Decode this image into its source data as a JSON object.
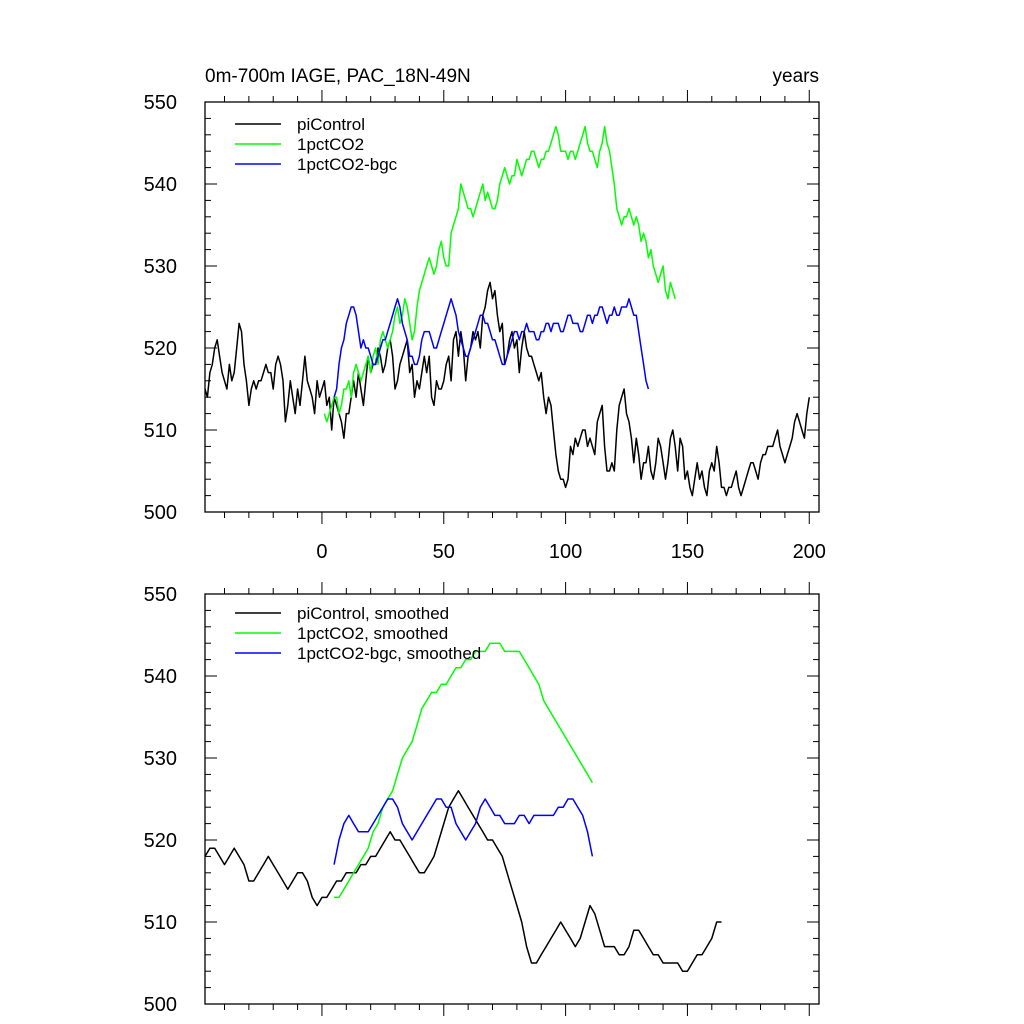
{
  "chart_data": [
    {
      "type": "line",
      "title_left": "0m-700m IAGE, PAC_18N-49N",
      "title_right": "years",
      "xlim": [
        -48,
        204
      ],
      "ylim": [
        500,
        550
      ],
      "x_ticks": [
        0,
        50,
        100,
        150,
        200
      ],
      "x_tick_labels": [
        "0",
        "50",
        "100",
        "150",
        "200"
      ],
      "y_ticks": [
        500,
        510,
        520,
        530,
        540,
        550
      ],
      "y_tick_labels": [
        "500",
        "510",
        "520",
        "530",
        "540",
        "550"
      ],
      "colors": {
        "piControl": "#000000",
        "1pctCO2": "#00ff00",
        "1pctCO2-bgc": "#0000ff"
      },
      "legend": [
        "piControl",
        "1pctCO2",
        "1pctCO2-bgc"
      ],
      "series": [
        {
          "name": "piControl",
          "color": "#000000",
          "x_start": -48,
          "x_step": 1,
          "values": [
            515,
            514,
            517,
            518,
            520,
            521,
            519,
            517,
            516,
            515,
            518,
            516,
            517,
            520,
            523,
            522,
            518,
            516,
            513,
            515,
            516,
            515,
            516,
            516,
            517,
            518,
            517,
            517,
            515,
            518,
            519,
            518,
            516,
            511,
            513,
            516,
            514,
            512,
            515,
            513,
            516,
            519,
            516,
            515,
            514,
            512,
            516,
            514,
            515,
            516,
            513,
            514,
            510,
            514,
            513,
            512,
            511,
            509,
            512,
            512,
            514,
            516,
            514,
            517,
            515,
            513,
            516,
            519,
            517,
            518,
            518,
            520,
            519,
            517,
            518,
            520,
            521,
            519,
            515,
            516,
            518,
            519,
            520,
            521,
            517,
            518,
            514,
            516,
            515,
            517,
            519,
            517,
            519,
            514,
            513,
            516,
            515,
            515,
            516,
            518,
            519,
            516,
            521,
            522,
            519,
            522,
            520,
            516,
            519,
            520,
            522,
            521,
            522,
            520,
            524,
            525,
            527,
            528,
            526,
            527,
            524,
            522,
            523,
            518,
            519,
            521,
            522,
            520,
            521,
            517,
            520,
            522,
            520,
            519,
            519,
            518,
            517,
            516,
            517,
            514,
            512,
            514,
            513,
            510,
            507,
            505,
            504,
            504,
            503,
            504,
            508,
            507,
            509,
            508,
            509,
            510,
            510,
            508,
            509,
            508,
            507,
            511,
            512,
            513,
            508,
            505,
            505,
            506,
            505,
            510,
            513,
            514,
            515,
            512,
            511,
            509,
            506,
            509,
            507,
            504,
            506,
            506,
            508,
            505,
            504,
            506,
            509,
            508,
            506,
            504,
            506,
            509,
            510,
            508,
            505,
            509,
            508,
            504,
            505,
            503,
            502,
            504,
            506,
            504,
            505,
            503,
            502,
            505,
            506,
            505,
            508,
            506,
            503,
            503,
            502,
            503,
            503,
            504,
            505,
            503,
            502,
            503,
            504,
            505,
            506,
            506,
            505,
            504,
            506,
            507,
            507,
            508,
            508,
            508,
            509,
            510,
            508,
            507,
            506,
            507,
            508,
            509,
            511,
            512,
            511,
            510,
            509,
            512,
            514
          ]
        },
        {
          "name": "1pctCO2",
          "color": "#00ff00",
          "x_start": 1,
          "x_step": 1,
          "values": [
            512,
            511,
            512,
            513,
            514,
            514,
            512,
            513,
            515,
            515,
            516,
            514,
            517,
            518,
            517,
            516,
            517,
            518,
            519,
            517,
            519,
            520,
            518,
            521,
            522,
            521,
            520,
            521,
            522,
            524,
            525,
            523,
            524,
            526,
            525,
            523,
            521,
            522,
            525,
            527,
            528,
            529,
            530,
            531,
            530,
            529,
            530,
            532,
            533,
            531,
            530,
            530,
            534,
            535,
            536,
            537,
            540,
            539,
            538,
            537,
            537,
            536,
            537,
            538,
            539,
            540,
            538,
            539,
            538,
            537,
            537,
            538,
            540,
            541,
            542,
            541,
            540,
            541,
            541,
            543,
            542,
            541,
            542,
            543,
            543,
            544,
            544,
            543,
            542,
            543,
            543,
            544,
            544,
            545,
            546,
            547,
            546,
            544,
            544,
            544,
            543,
            544,
            544,
            543,
            544,
            545,
            546,
            547,
            545,
            544,
            544,
            543,
            542,
            544,
            545,
            547,
            545,
            544,
            542,
            540,
            537,
            536,
            535,
            536,
            536,
            537,
            536,
            535,
            536,
            535,
            533,
            534,
            533,
            531,
            532,
            530,
            529,
            528,
            529,
            530,
            527,
            526,
            528,
            527,
            526
          ]
        },
        {
          "name": "1pctCO2-bgc",
          "color": "#0000ff",
          "x_start": 5,
          "x_step": 1,
          "values": [
            514,
            515,
            518,
            520,
            521,
            523,
            524,
            525,
            525,
            524,
            522,
            520,
            521,
            520,
            520,
            519,
            518,
            518,
            519,
            520,
            521,
            521,
            522,
            523,
            524,
            525,
            526,
            525,
            523,
            522,
            521,
            519,
            519,
            518,
            518,
            519,
            521,
            522,
            522,
            522,
            521,
            520,
            520,
            521,
            522,
            523,
            524,
            525,
            526,
            525,
            524,
            522,
            521,
            520,
            519,
            519,
            520,
            521,
            522,
            523,
            524,
            524,
            523,
            523,
            522,
            521,
            521,
            520,
            519,
            518,
            518,
            519,
            520,
            521,
            522,
            522,
            521,
            522,
            522,
            523,
            522,
            522,
            522,
            521,
            521,
            522,
            522,
            523,
            523,
            522,
            523,
            523,
            523,
            522,
            522,
            523,
            524,
            524,
            523,
            523,
            523,
            522,
            522,
            523,
            524,
            524,
            523,
            524,
            524,
            525,
            525,
            524,
            523,
            524,
            524,
            525,
            524,
            524,
            525,
            525,
            525,
            526,
            525,
            524,
            524,
            522,
            520,
            518,
            516,
            515
          ]
        }
      ]
    },
    {
      "type": "line",
      "xlim": [
        -48,
        204
      ],
      "ylim": [
        500,
        550
      ],
      "y_ticks": [
        500,
        510,
        520,
        530,
        540,
        550
      ],
      "y_tick_labels": [
        "500",
        "510",
        "520",
        "530",
        "540",
        "550"
      ],
      "legend": [
        "piControl, smoothed",
        "1pctCO2, smoothed",
        "1pctCO2-bgc, smoothed"
      ],
      "series": [
        {
          "name": "piControl, smoothed",
          "color": "#000000",
          "x_start": -48,
          "x_step": 2,
          "values": [
            518,
            519,
            519,
            518,
            517,
            518,
            519,
            518,
            517,
            515,
            515,
            516,
            517,
            518,
            517,
            516,
            515,
            514,
            515,
            516,
            516,
            515,
            513,
            512,
            513,
            513,
            514,
            515,
            515,
            516,
            516,
            516,
            517,
            517,
            518,
            518,
            519,
            520,
            521,
            520,
            520,
            519,
            518,
            517,
            516,
            516,
            517,
            518,
            520,
            522,
            524,
            525,
            526,
            525,
            524,
            523,
            522,
            521,
            520,
            520,
            519,
            518,
            516,
            514,
            512,
            510,
            507,
            505,
            505,
            506,
            507,
            508,
            509,
            510,
            509,
            508,
            507,
            508,
            510,
            512,
            511,
            509,
            507,
            507,
            507,
            506,
            506,
            507,
            509,
            509,
            508,
            507,
            506,
            506,
            505,
            505,
            505,
            505,
            504,
            504,
            505,
            506,
            506,
            507,
            508,
            510,
            510
          ]
        },
        {
          "name": "1pctCO2, smoothed",
          "color": "#00ff00",
          "x_start": 5,
          "x_step": 2,
          "values": [
            513,
            513,
            514,
            515,
            516,
            517,
            518,
            519,
            521,
            522,
            524,
            525,
            526,
            528,
            530,
            531,
            532,
            534,
            536,
            537,
            538,
            538,
            539,
            539,
            540,
            541,
            541,
            542,
            542,
            543,
            543,
            543,
            544,
            544,
            544,
            543,
            543,
            543,
            543,
            542,
            541,
            540,
            539,
            537,
            536,
            535,
            534,
            533,
            532,
            531,
            530,
            529,
            528,
            527
          ]
        },
        {
          "name": "1pctCO2-bgc, smoothed",
          "color": "#0000ff",
          "x_start": 5,
          "x_step": 2,
          "values": [
            517,
            520,
            522,
            523,
            522,
            521,
            521,
            521,
            522,
            523,
            524,
            525,
            525,
            524,
            522,
            521,
            520,
            521,
            522,
            523,
            524,
            525,
            525,
            524,
            524,
            522,
            521,
            520,
            521,
            522,
            524,
            525,
            524,
            523,
            523,
            522,
            522,
            522,
            523,
            523,
            522,
            523,
            523,
            523,
            523,
            523,
            524,
            524,
            525,
            525,
            524,
            523,
            521,
            518
          ]
        }
      ]
    }
  ]
}
